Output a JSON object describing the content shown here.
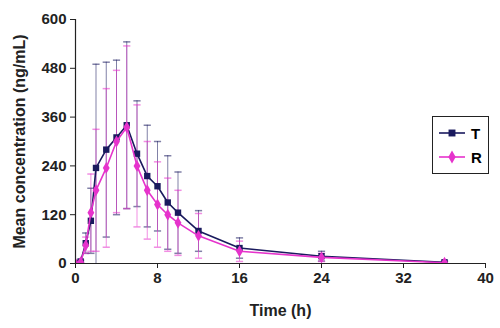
{
  "chart_data": {
    "type": "line",
    "x_label": "Time (h)",
    "y_label": "Mean concentration (ng/mL)",
    "xlim": [
      0,
      40
    ],
    "xticks": [
      0,
      8,
      16,
      24,
      32,
      40
    ],
    "ylim": [
      0,
      600
    ],
    "yticks": [
      0,
      120,
      240,
      360,
      480,
      600
    ],
    "grid": false,
    "legend": "upper right",
    "x": [
      0,
      0.5,
      1,
      1.5,
      2,
      3,
      4,
      5,
      6,
      7,
      8,
      9,
      10,
      12,
      16,
      24,
      36
    ],
    "series": [
      {
        "name": "T",
        "color": "#1a1a5e",
        "marker": "square",
        "values": [
          0,
          5,
          50,
          105,
          235,
          280,
          310,
          340,
          270,
          215,
          190,
          150,
          125,
          80,
          38,
          18,
          3
        ],
        "error": [
          0,
          3,
          25,
          80,
          255,
          215,
          190,
          205,
          130,
          125,
          110,
          115,
          100,
          50,
          25,
          12,
          3
        ]
      },
      {
        "name": "R",
        "color": "#e633cc",
        "marker": "diamond",
        "values": [
          0,
          3,
          45,
          125,
          180,
          235,
          300,
          335,
          240,
          180,
          145,
          120,
          100,
          68,
          30,
          15,
          2
        ],
        "error": [
          0,
          2,
          20,
          95,
          150,
          195,
          175,
          200,
          150,
          120,
          105,
          90,
          80,
          55,
          25,
          10,
          2
        ]
      }
    ]
  }
}
